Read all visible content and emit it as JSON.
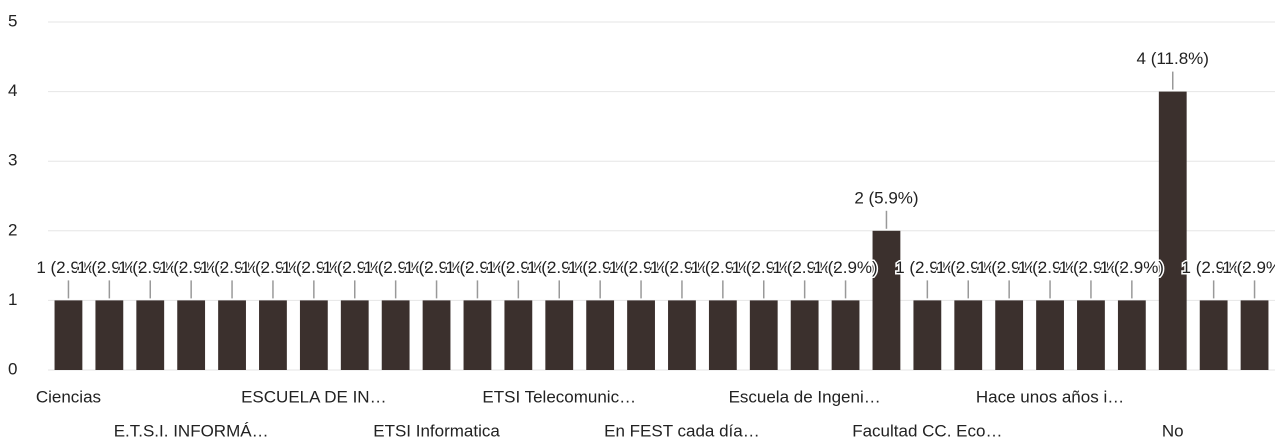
{
  "chart_data": {
    "type": "bar",
    "categories": [
      "Ciencias",
      null,
      null,
      "E.T.S.I. INFORMÁ…",
      null,
      null,
      "ESCUELA DE IN…",
      null,
      null,
      "ETSI Informatica",
      null,
      null,
      "ETSI Telecomunic…",
      null,
      null,
      "En FEST cada día…",
      null,
      null,
      "Escuela de Ingeni…",
      null,
      null,
      "Facultad CC. Eco…",
      null,
      null,
      "Hace unos años i…",
      null,
      null,
      "No",
      null,
      null
    ],
    "values": [
      1,
      1,
      1,
      1,
      1,
      1,
      1,
      1,
      1,
      1,
      1,
      1,
      1,
      1,
      1,
      1,
      1,
      1,
      1,
      1,
      2,
      1,
      1,
      1,
      1,
      1,
      1,
      4,
      1,
      1
    ],
    "value_labels": [
      "1 (2.9%)",
      "1 (2.9%)",
      "1 (2.9%)",
      "1 (2.9%)",
      "1 (2.9%)",
      "1 (2.9%)",
      "1 (2.9%)",
      "1 (2.9%)",
      "1 (2.9%)",
      "1 (2.9%)",
      "1 (2.9%)",
      "1 (2.9%)",
      "1 (2.9%)",
      "1 (2.9%)",
      "1 (2.9%)",
      "1 (2.9%)",
      "1 (2.9%)",
      "1 (2.9%)",
      "1 (2.9%)",
      "1 (2.9%)",
      "2 (5.9%)",
      "1 (2.9%)",
      "1 (2.9%)",
      "1 (2.9%)",
      "1 (2.9%)",
      "1 (2.9%)",
      "1 (2.9%)",
      "4 (11.8%)",
      "1 (2.9%)",
      "1 (2.9%)"
    ],
    "color": "#3b302d",
    "ylim": [
      0,
      5
    ],
    "yticks": [
      0,
      1,
      2,
      3,
      4,
      5
    ],
    "grid": true
  }
}
